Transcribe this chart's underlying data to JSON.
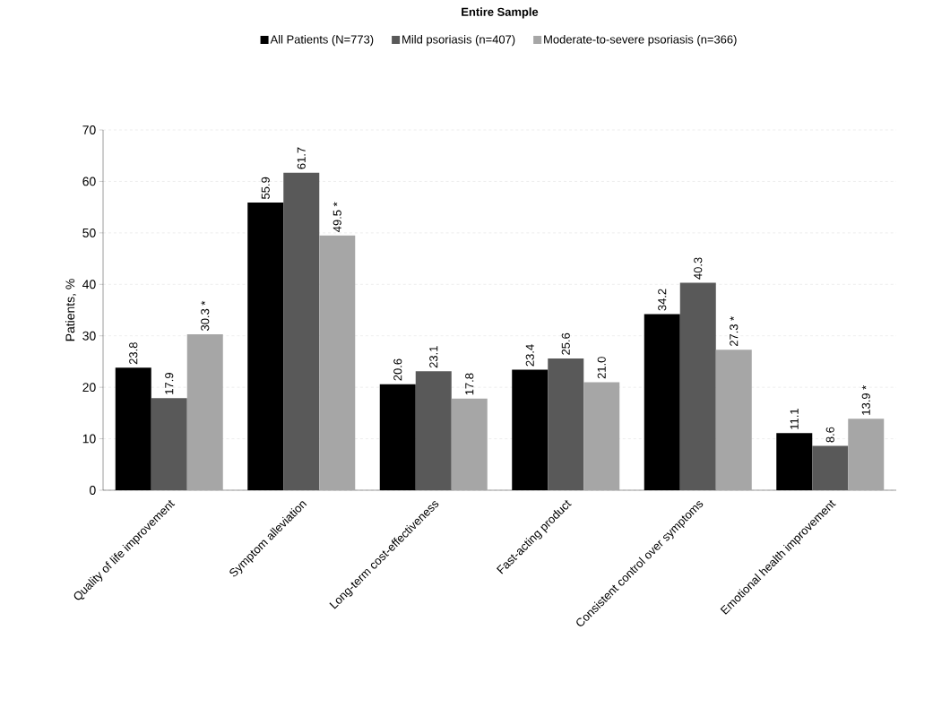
{
  "chart_data": {
    "type": "bar",
    "title": "Entire Sample",
    "ylabel": "Patients, %",
    "categories": [
      "Quality of life improvement",
      "Symptom alleviation",
      "Long-term cost-effectiveness",
      "Fast-acting product",
      "Consistent control over symptoms",
      "Emotional health improvement"
    ],
    "series": [
      {
        "name": "All Patients (N=773)",
        "color": "#000000",
        "values": [
          23.8,
          55.9,
          20.6,
          23.4,
          34.2,
          11.1
        ],
        "value_labels": [
          "23.8",
          "55.9",
          "20.6",
          "23.4",
          "34.2",
          "11.1"
        ]
      },
      {
        "name": "Mild psoriasis (n=407)",
        "color": "#595959",
        "values": [
          17.9,
          61.7,
          23.1,
          25.6,
          40.3,
          8.6
        ],
        "value_labels": [
          "17.9",
          "61.7",
          "23.1",
          "25.6",
          "40.3",
          "8.6"
        ]
      },
      {
        "name": "Moderate-to-severe psoriasis (n=366)",
        "color": "#a6a6a6",
        "values": [
          30.3,
          49.5,
          17.8,
          21.0,
          27.3,
          13.9
        ],
        "value_labels": [
          "30.3 *",
          "49.5 *",
          "17.8",
          "21.0",
          "27.3 *",
          "13.9 *"
        ]
      }
    ],
    "ylim": [
      0,
      70
    ],
    "yticks": [
      0,
      10,
      20,
      30,
      40,
      50,
      60,
      70
    ],
    "grid": "y",
    "legend": "top"
  }
}
